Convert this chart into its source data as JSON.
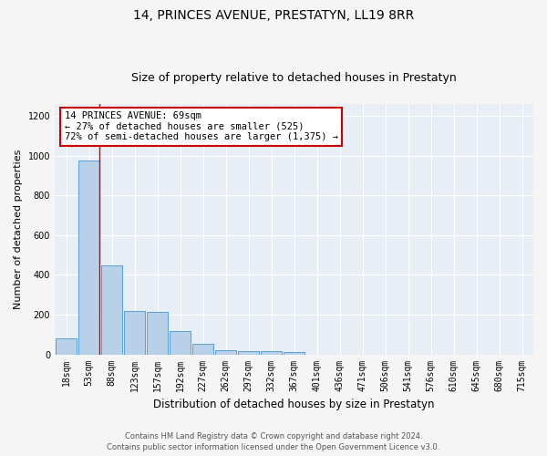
{
  "title": "14, PRINCES AVENUE, PRESTATYN, LL19 8RR",
  "subtitle": "Size of property relative to detached houses in Prestatyn",
  "xlabel": "Distribution of detached houses by size in Prestatyn",
  "ylabel": "Number of detached properties",
  "categories": [
    "18sqm",
    "53sqm",
    "88sqm",
    "123sqm",
    "157sqm",
    "192sqm",
    "227sqm",
    "262sqm",
    "297sqm",
    "332sqm",
    "367sqm",
    "401sqm",
    "436sqm",
    "471sqm",
    "506sqm",
    "541sqm",
    "576sqm",
    "610sqm",
    "645sqm",
    "680sqm",
    "715sqm"
  ],
  "values": [
    80,
    975,
    450,
    220,
    215,
    115,
    55,
    20,
    18,
    18,
    10,
    0,
    0,
    0,
    0,
    0,
    0,
    0,
    0,
    0,
    0
  ],
  "bar_color": "#b8d0e8",
  "bar_edge_color": "#5a9fd4",
  "annotation_text": "14 PRINCES AVENUE: 69sqm\n← 27% of detached houses are smaller (525)\n72% of semi-detached houses are larger (1,375) →",
  "annotation_box_facecolor": "#ffffff",
  "annotation_box_edgecolor": "#cc0000",
  "red_line_x": 1.45,
  "ylim": [
    0,
    1260
  ],
  "yticks": [
    0,
    200,
    400,
    600,
    800,
    1000,
    1200
  ],
  "footer_text": "Contains HM Land Registry data © Crown copyright and database right 2024.\nContains public sector information licensed under the Open Government Licence v3.0.",
  "bg_color": "#e8eef5",
  "grid_color": "#ffffff",
  "fig_bg_color": "#f5f5f5",
  "title_fontsize": 10,
  "subtitle_fontsize": 9,
  "tick_fontsize": 7,
  "ylabel_fontsize": 8,
  "xlabel_fontsize": 8.5,
  "annotation_fontsize": 7.5,
  "footer_fontsize": 6
}
